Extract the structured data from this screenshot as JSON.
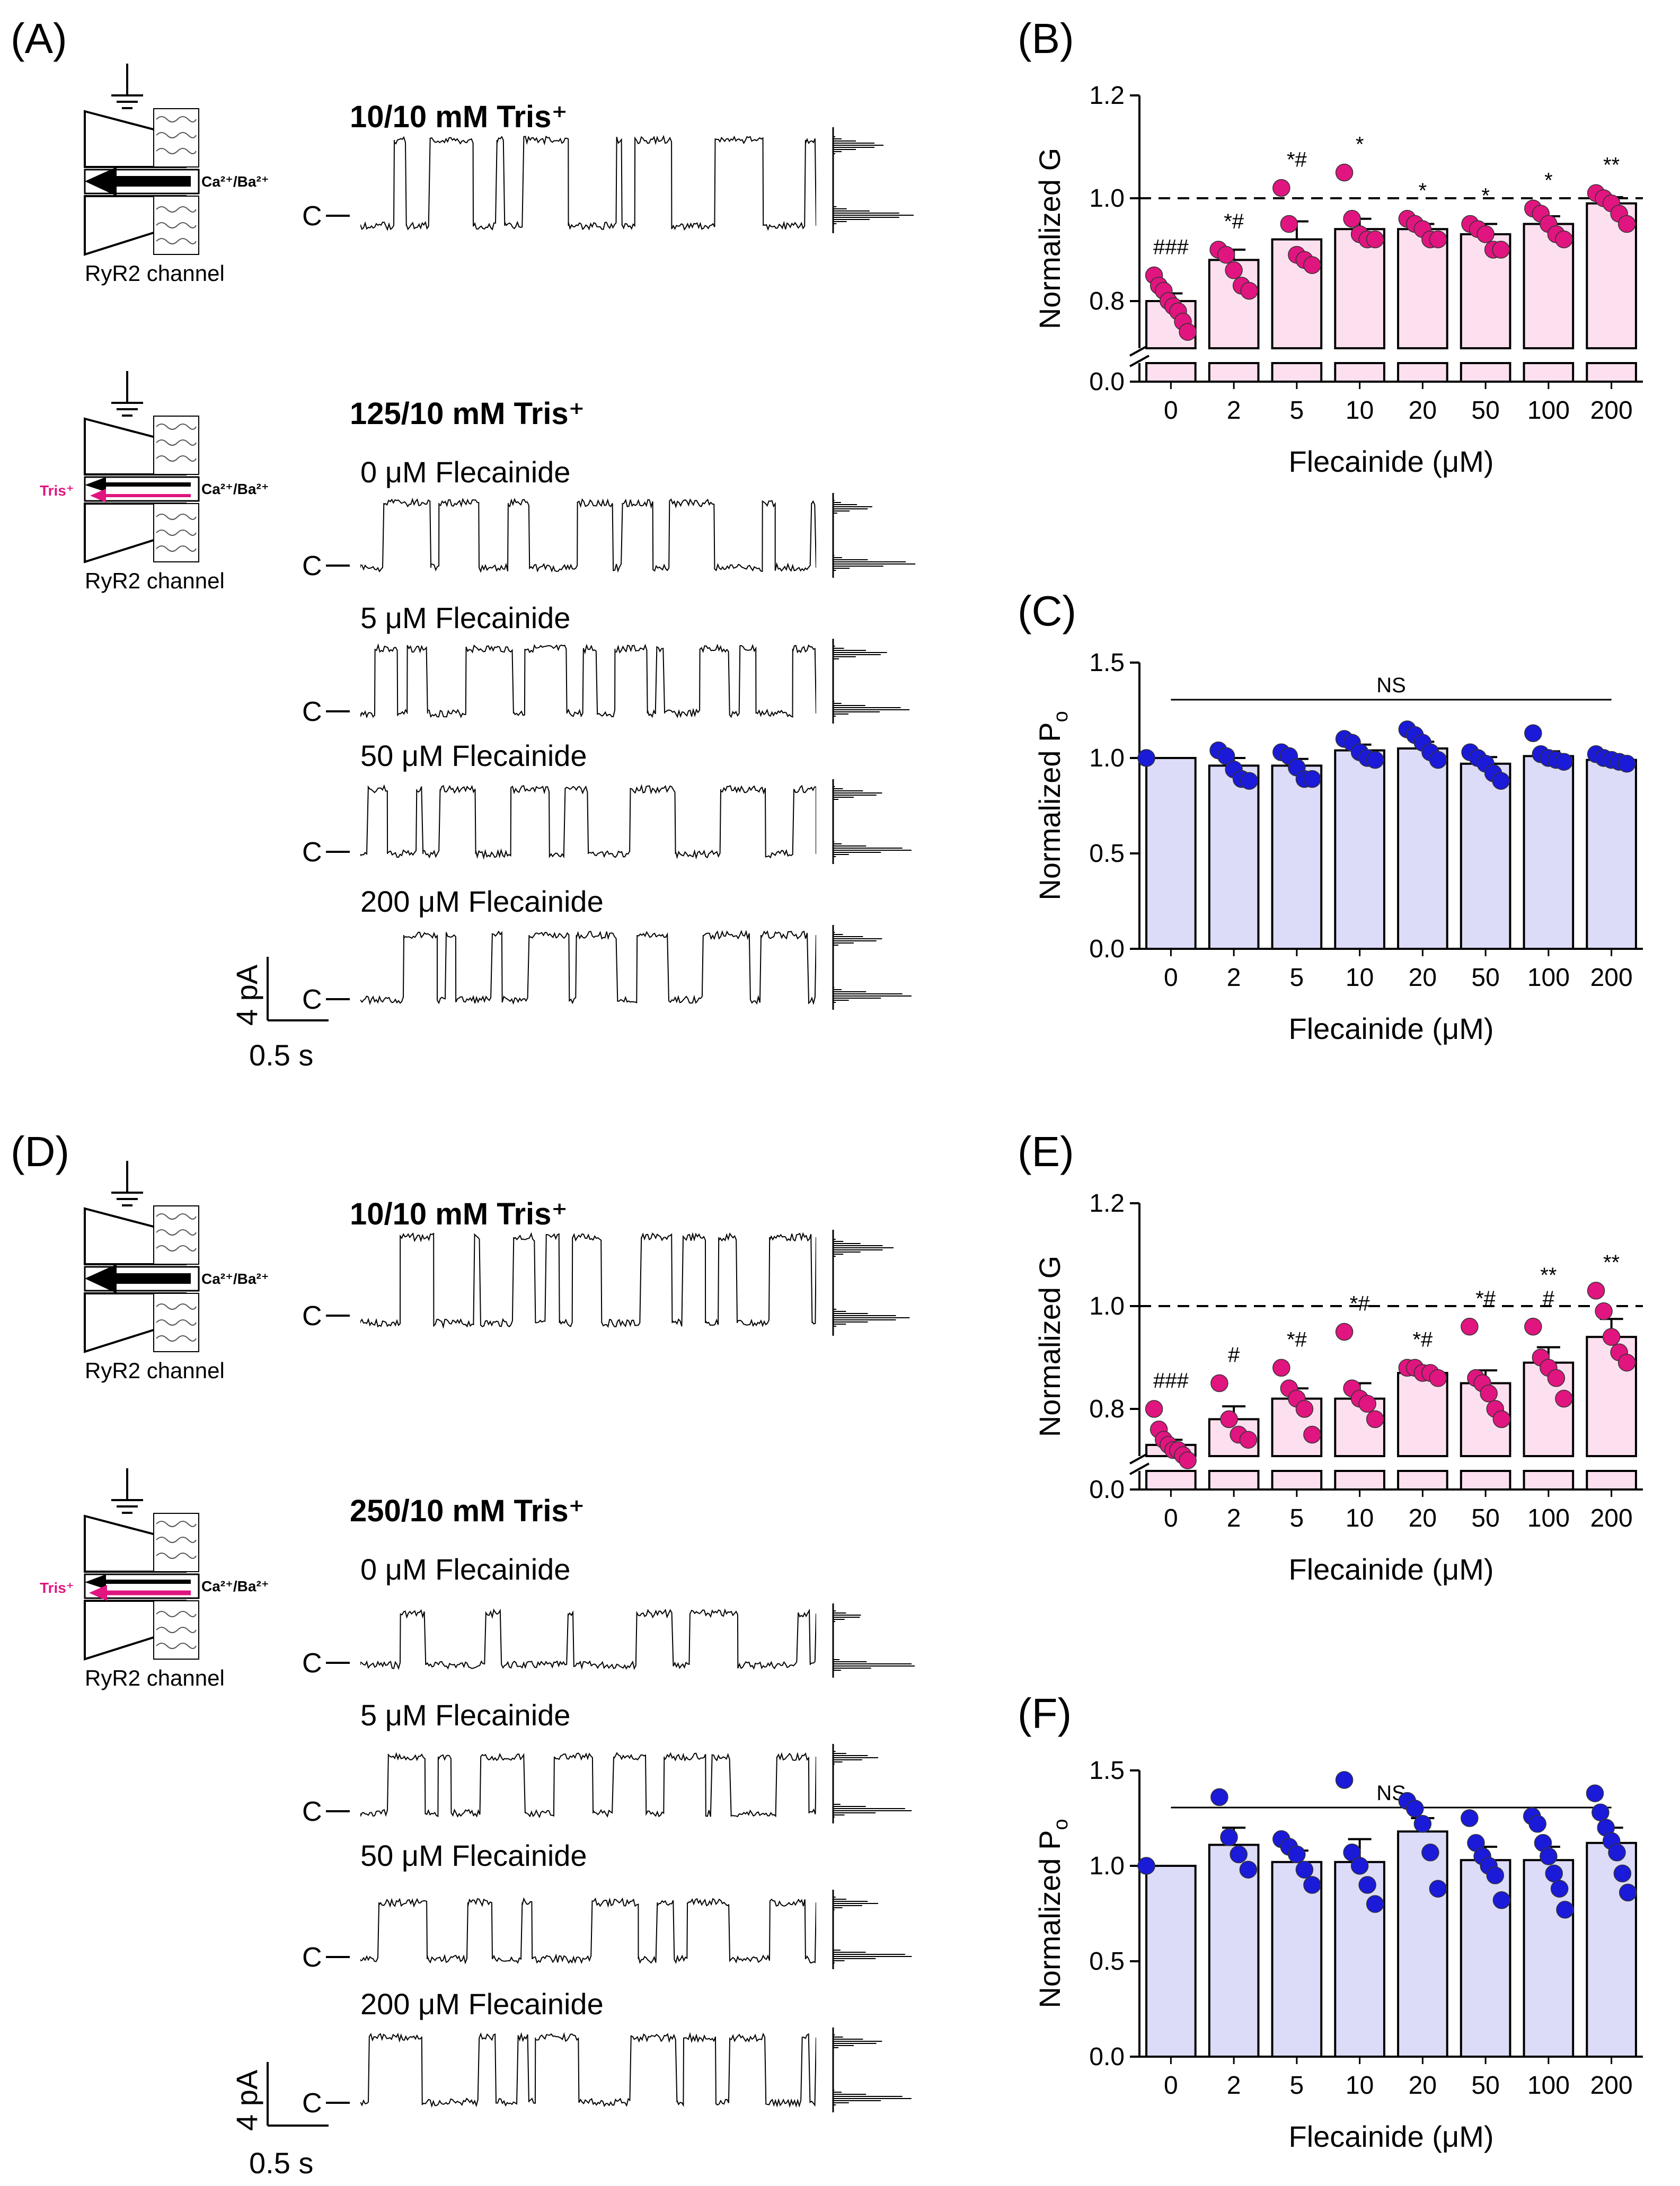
{
  "colors": {
    "pink_bar": "#fde0ef",
    "pink_dot": "#e0157f",
    "blue_bar": "#dcdcf8",
    "blue_dot": "#1a1ad8",
    "tris_arrow": "#e0157f",
    "black": "#000000"
  },
  "panel_labels": {
    "A": "(A)",
    "B": "(B)",
    "C": "(C)",
    "D": "(D)",
    "E": "(E)",
    "F": "(F)"
  },
  "schematic": {
    "channel_label": "RyR2 channel",
    "ion_label": "Ca²⁺/Ba²⁺",
    "tris_label": "Tris⁺",
    "closed_marker": "C"
  },
  "panel_A": {
    "top_condition": "10/10 mM Tris⁺",
    "bottom_condition": "125/10 mM Tris⁺",
    "traces": [
      "0 μM Flecainide",
      "5 μM Flecainide",
      "50 μM Flecainide",
      "200 μM Flecainide"
    ],
    "scale_current": "4 pA",
    "scale_time": "0.5 s"
  },
  "panel_D": {
    "top_condition": "10/10 mM Tris⁺",
    "bottom_condition": "250/10 mM Tris⁺",
    "traces": [
      "0 μM Flecainide",
      "5 μM Flecainide",
      "50 μM Flecainide",
      "200 μM Flecainide"
    ],
    "scale_current": "4 pA",
    "scale_time": "0.5 s"
  },
  "chart_data": [
    {
      "panel": "B",
      "type": "bar",
      "categories": [
        "0",
        "2",
        "5",
        "10",
        "20",
        "50",
        "100",
        "200"
      ],
      "values": [
        0.8,
        0.88,
        0.92,
        0.94,
        0.94,
        0.93,
        0.95,
        0.99
      ],
      "errors": [
        0.015,
        0.02,
        0.035,
        0.02,
        0.01,
        0.02,
        0.015,
        0.012
      ],
      "points": [
        [
          0.85,
          0.83,
          0.82,
          0.8,
          0.79,
          0.78,
          0.76,
          0.74
        ],
        [
          0.9,
          0.89,
          0.86,
          0.83,
          0.82
        ],
        [
          1.02,
          0.95,
          0.89,
          0.88,
          0.87
        ],
        [
          1.05,
          0.96,
          0.93,
          0.92,
          0.92
        ],
        [
          0.96,
          0.95,
          0.94,
          0.92,
          0.92
        ],
        [
          0.95,
          0.94,
          0.93,
          0.9,
          0.9
        ],
        [
          0.98,
          0.97,
          0.95,
          0.93,
          0.92
        ],
        [
          1.01,
          1.0,
          0.99,
          0.97,
          0.95
        ]
      ],
      "annotations": [
        "###",
        "*#",
        "*#",
        "*",
        "*",
        "*",
        "*",
        "**"
      ],
      "reference_line": 1.0,
      "ylim": [
        0.7,
        1.2
      ],
      "yticks": [
        "0.0",
        "0.8",
        "1.0",
        "1.2"
      ],
      "axis_break": true,
      "xlabel": "Flecainide (μM)",
      "ylabel": "Normalized G"
    },
    {
      "panel": "C",
      "type": "bar",
      "categories": [
        "0",
        "2",
        "5",
        "10",
        "20",
        "50",
        "100",
        "200"
      ],
      "values": [
        1.0,
        0.96,
        0.96,
        1.04,
        1.05,
        0.97,
        1.01,
        0.99
      ],
      "errors": [
        0.0,
        0.04,
        0.035,
        0.03,
        0.035,
        0.035,
        0.025,
        0.015
      ],
      "points": [
        [
          1.0
        ],
        [
          1.04,
          1.01,
          0.94,
          0.89,
          0.88
        ],
        [
          1.03,
          1.01,
          0.95,
          0.89,
          0.89
        ],
        [
          1.1,
          1.08,
          1.03,
          1.0,
          0.99
        ],
        [
          1.15,
          1.12,
          1.08,
          1.03,
          0.99
        ],
        [
          1.03,
          1.0,
          0.97,
          0.92,
          0.88
        ],
        [
          1.13,
          1.02,
          1.0,
          0.99,
          0.98
        ],
        [
          1.02,
          1.0,
          0.99,
          0.98,
          0.97
        ]
      ],
      "annotation": "NS",
      "ylim": [
        0.0,
        1.5
      ],
      "yticks": [
        "0.0",
        "0.5",
        "1.0",
        "1.5"
      ],
      "xlabel": "Flecainide (μM)",
      "ylabel": "Normalized P",
      "ylabel_subscript": "o"
    },
    {
      "panel": "E",
      "type": "bar",
      "categories": [
        "0",
        "2",
        "5",
        "10",
        "20",
        "50",
        "100",
        "200"
      ],
      "values": [
        0.73,
        0.78,
        0.82,
        0.82,
        0.87,
        0.85,
        0.89,
        0.94
      ],
      "errors": [
        0.01,
        0.025,
        0.02,
        0.03,
        0.01,
        0.025,
        0.03,
        0.035
      ],
      "points": [
        [
          0.8,
          0.76,
          0.74,
          0.73,
          0.72,
          0.72,
          0.71,
          0.7
        ],
        [
          0.85,
          0.78,
          0.75,
          0.74
        ],
        [
          0.88,
          0.84,
          0.82,
          0.8,
          0.75
        ],
        [
          0.95,
          0.84,
          0.82,
          0.81,
          0.78
        ],
        [
          0.88,
          0.88,
          0.87,
          0.87,
          0.86
        ],
        [
          0.96,
          0.86,
          0.85,
          0.83,
          0.8,
          0.78
        ],
        [
          0.96,
          0.9,
          0.88,
          0.86,
          0.82
        ],
        [
          1.03,
          0.99,
          0.94,
          0.91,
          0.89
        ]
      ],
      "annotations": [
        "###",
        "#",
        "*#",
        "*#",
        "*#",
        "*#",
        "**\n#",
        "**"
      ],
      "reference_line": 1.0,
      "ylim": [
        0.7,
        1.2
      ],
      "yticks": [
        "0.0",
        "0.8",
        "1.0",
        "1.2"
      ],
      "axis_break": true,
      "xlabel": "Flecainide (μM)",
      "ylabel": "Normalized G"
    },
    {
      "panel": "F",
      "type": "bar",
      "categories": [
        "0",
        "2",
        "5",
        "10",
        "20",
        "50",
        "100",
        "200"
      ],
      "values": [
        1.0,
        1.11,
        1.02,
        1.02,
        1.18,
        1.03,
        1.03,
        1.12
      ],
      "errors": [
        0.0,
        0.09,
        0.06,
        0.12,
        0.07,
        0.07,
        0.07,
        0.08
      ],
      "points": [
        [
          1.0
        ],
        [
          1.36,
          1.15,
          1.06,
          0.98
        ],
        [
          1.14,
          1.1,
          1.06,
          0.98,
          0.9
        ],
        [
          1.45,
          1.07,
          1.0,
          0.9,
          0.8
        ],
        [
          1.34,
          1.3,
          1.22,
          1.07,
          0.88
        ],
        [
          1.25,
          1.12,
          1.05,
          1.0,
          0.95,
          0.82
        ],
        [
          1.26,
          1.22,
          1.12,
          1.05,
          0.96,
          0.88,
          0.77
        ],
        [
          1.38,
          1.28,
          1.2,
          1.13,
          1.07,
          0.96,
          0.86
        ]
      ],
      "annotation": "NS",
      "ylim": [
        0.0,
        1.5
      ],
      "yticks": [
        "0.0",
        "0.5",
        "1.0",
        "1.5"
      ],
      "xlabel": "Flecainide (μM)",
      "ylabel": "Normalized P",
      "ylabel_subscript": "o"
    }
  ]
}
